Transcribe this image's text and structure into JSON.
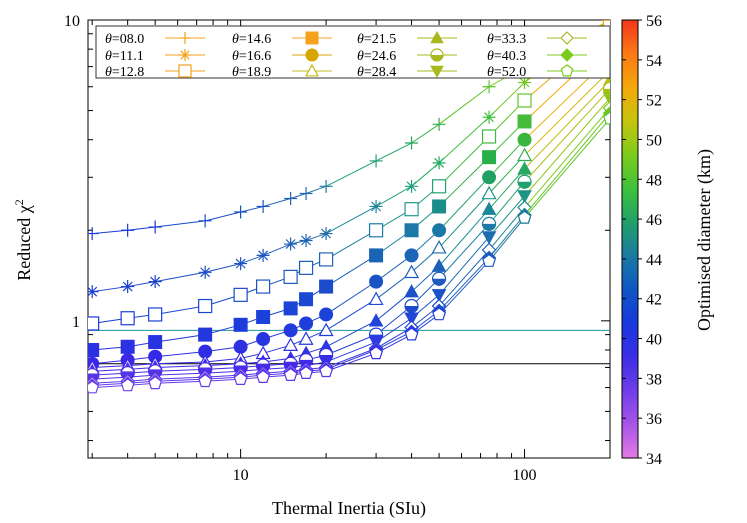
{
  "chart_data": {
    "type": "line",
    "xlabel": "Thermal Inertia (SIu)",
    "ylabel": "Reduced χ2",
    "colorbar_label": "Optimised diameter (km)",
    "x_scale": "log",
    "y_scale": "log",
    "xlim": [
      2.9,
      200
    ],
    "ylim": [
      0.35,
      10
    ],
    "x_ticks": [
      10,
      100
    ],
    "x_tick_labels": [
      "10",
      "100"
    ],
    "y_ticks": [
      1,
      10
    ],
    "y_tick_labels": [
      "1",
      "10"
    ],
    "colorbar_range": [
      34,
      56
    ],
    "colorbar_ticks": [
      "34",
      "36",
      "38",
      "40",
      "42",
      "44",
      "46",
      "48",
      "50",
      "52",
      "54",
      "56"
    ],
    "colorbar_colors": [
      "#e37ae3",
      "#a855e8",
      "#6f3ee8",
      "#3c2ee6",
      "#1838dc",
      "#0e56c4",
      "#1a7ba0",
      "#20a06a",
      "#3ec23a",
      "#7ccb1c",
      "#c6c40e",
      "#f4a70c",
      "#fb7a14",
      "#f4361c"
    ],
    "legend_location": "top",
    "legend": [
      {
        "label": "θ=08.0",
        "marker": "plus",
        "color": "#f4a21c"
      },
      {
        "label": "θ=11.1",
        "marker": "star",
        "color": "#f4a21c"
      },
      {
        "label": "θ=12.8",
        "marker": "square-open",
        "color": "#f4a21c"
      },
      {
        "label": "θ=14.6",
        "marker": "square",
        "color": "#f4a21c"
      },
      {
        "label": "θ=16.6",
        "marker": "circle",
        "color": "#d6a600"
      },
      {
        "label": "θ=18.9",
        "marker": "triangle-open",
        "color": "#c8b81e"
      },
      {
        "label": "θ=21.5",
        "marker": "triangle",
        "color": "#a8b81e"
      },
      {
        "label": "θ=24.6",
        "marker": "circle-half",
        "color": "#a8b81e"
      },
      {
        "label": "θ=28.4",
        "marker": "triangle-down",
        "color": "#a8b81e"
      },
      {
        "label": "θ=33.3",
        "marker": "diamond-open",
        "color": "#a8b81e"
      },
      {
        "label": "θ=40.3",
        "marker": "diamond",
        "color": "#7ccb1c"
      },
      {
        "label": "θ=52.0",
        "marker": "pentagon-open",
        "color": "#7ccb1c"
      }
    ],
    "x": [
      3,
      4,
      5,
      7.5,
      10,
      12,
      15,
      17,
      20,
      30,
      40,
      50,
      75,
      100,
      200
    ],
    "series": [
      {
        "name": "θ=08.0",
        "marker": "plus",
        "y": [
          1.95,
          2.0,
          2.05,
          2.15,
          2.3,
          2.4,
          2.55,
          2.65,
          2.8,
          3.4,
          3.9,
          4.5,
          6.0,
          7.0,
          10.0
        ],
        "colors": [
          "#1838dc",
          "#1838dc",
          "#1838dc",
          "#1848d0",
          "#1850c8",
          "#1856c4",
          "#1e62b8",
          "#1e6ab0",
          "#20789f",
          "#209a78",
          "#22a660",
          "#30b048",
          "#5cc428",
          "#7ccb1c",
          "#c6c40e"
        ]
      },
      {
        "name": "θ=11.1",
        "marker": "star",
        "y": [
          1.25,
          1.3,
          1.35,
          1.45,
          1.55,
          1.65,
          1.8,
          1.85,
          1.95,
          2.4,
          2.8,
          3.35,
          4.75,
          6.2,
          10.0
        ],
        "colors": [
          "#1a3ad8",
          "#1a40d4",
          "#1a44d0",
          "#1a4ccc",
          "#1c54c4",
          "#1c58c0",
          "#1e60b8",
          "#1e64b4",
          "#1e6cac",
          "#1e889a",
          "#20a080",
          "#22aa60",
          "#40c03a",
          "#6ec820",
          "#e0b80c"
        ]
      },
      {
        "name": "θ=12.8",
        "marker": "square-open",
        "y": [
          0.98,
          1.02,
          1.05,
          1.12,
          1.22,
          1.3,
          1.4,
          1.5,
          1.6,
          2.0,
          2.35,
          2.8,
          4.1,
          5.4,
          9.5
        ],
        "colors": [
          "#1838dc",
          "#1a3cd8",
          "#1a40d4",
          "#1a48d0",
          "#1a4ccc",
          "#1c52c4",
          "#1c58c0",
          "#1c5cbc",
          "#1e62b8",
          "#1e7ca4",
          "#209890",
          "#20a270",
          "#3eba40",
          "#60c42a",
          "#f0a80c"
        ]
      },
      {
        "name": "θ=14.6",
        "marker": "square",
        "y": [
          0.8,
          0.82,
          0.85,
          0.9,
          0.97,
          1.03,
          1.1,
          1.18,
          1.3,
          1.65,
          2.0,
          2.4,
          3.5,
          4.6,
          8.5
        ],
        "colors": [
          "#2a30e4",
          "#2a32e2",
          "#2834e0",
          "#2238de",
          "#1e3cdc",
          "#1c40da",
          "#1c44d6",
          "#1c48d2",
          "#1a4ccc",
          "#1a64b6",
          "#1c78a6",
          "#1a8c8a",
          "#28b048",
          "#44bc3a",
          "#f4a70c"
        ]
      },
      {
        "name": "θ=16.6",
        "marker": "circle",
        "y": [
          0.72,
          0.74,
          0.76,
          0.79,
          0.82,
          0.87,
          0.93,
          0.98,
          1.05,
          1.35,
          1.65,
          2.0,
          3.0,
          4.0,
          7.5
        ],
        "colors": [
          "#3a28e8",
          "#3a2ae6",
          "#342ae6",
          "#302ee4",
          "#2c32e2",
          "#2836e0",
          "#223ade",
          "#1e3edc",
          "#1c42d8",
          "#1a54c4",
          "#1c64b6",
          "#1a78a6",
          "#22a064",
          "#3ab640",
          "#e8b00c"
        ]
      },
      {
        "name": "θ=18.9",
        "marker": "triangle-open",
        "y": [
          0.7,
          0.71,
          0.72,
          0.73,
          0.75,
          0.78,
          0.83,
          0.87,
          0.93,
          1.18,
          1.45,
          1.75,
          2.65,
          3.55,
          6.8
        ],
        "colors": [
          "#4028e8",
          "#4028e8",
          "#3c28e8",
          "#382ae6",
          "#342ce6",
          "#3030e4",
          "#2a34e2",
          "#2638e0",
          "#223cde",
          "#1c4cd0",
          "#1a5cc0",
          "#1c6cb0",
          "#1e9484",
          "#2cae50",
          "#d4b80e"
        ]
      },
      {
        "name": "θ=21.5",
        "marker": "triangle",
        "y": [
          0.68,
          0.69,
          0.7,
          0.71,
          0.72,
          0.73,
          0.75,
          0.78,
          0.82,
          1.0,
          1.25,
          1.52,
          2.35,
          3.2,
          6.3
        ],
        "colors": [
          "#4a2ce8",
          "#4a2ce8",
          "#462ae8",
          "#4228e8",
          "#3e28e8",
          "#3a28e8",
          "#3630e4",
          "#3234e2",
          "#2c38e0",
          "#2044d8",
          "#1c52c8",
          "#1c60b8",
          "#1c8896",
          "#28a860",
          "#c0bc10"
        ]
      },
      {
        "name": "θ=24.6",
        "marker": "circle-half",
        "y": [
          0.66,
          0.67,
          0.68,
          0.69,
          0.7,
          0.71,
          0.72,
          0.74,
          0.77,
          0.9,
          1.12,
          1.38,
          2.1,
          2.9,
          5.9
        ],
        "colors": [
          "#5030e8",
          "#4e30e8",
          "#4c2ee8",
          "#482ce8",
          "#442ae8",
          "#4028e8",
          "#3c2ae6",
          "#382ee4",
          "#3232e2",
          "#2440dc",
          "#1c4ccc",
          "#1c5ac0",
          "#1c7aa4",
          "#22a070",
          "#a8c012"
        ]
      },
      {
        "name": "θ=28.4",
        "marker": "triangle-down",
        "y": [
          0.64,
          0.65,
          0.66,
          0.67,
          0.68,
          0.69,
          0.7,
          0.71,
          0.73,
          0.85,
          1.02,
          1.22,
          1.9,
          2.6,
          5.5
        ],
        "colors": [
          "#5834e8",
          "#5634e8",
          "#5432e8",
          "#5030e8",
          "#4c2ee8",
          "#482ce8",
          "#442ae8",
          "#402ae6",
          "#3a2ee4",
          "#2c3ae0",
          "#2046d6",
          "#1c52c8",
          "#1c6cb0",
          "#1e9484",
          "#90c418"
        ]
      },
      {
        "name": "θ=33.3",
        "marker": "diamond-open",
        "y": [
          0.62,
          0.63,
          0.64,
          0.65,
          0.66,
          0.67,
          0.68,
          0.69,
          0.7,
          0.81,
          0.95,
          1.12,
          1.72,
          2.38,
          5.1
        ],
        "colors": [
          "#6038e8",
          "#5e38e8",
          "#5c36e8",
          "#5834e8",
          "#5432e8",
          "#5030e8",
          "#4c2ee8",
          "#482ce8",
          "#442ae8",
          "#3034e2",
          "#2640dc",
          "#1e4cd0",
          "#1c62b8",
          "#1c8890",
          "#7ccb1c"
        ]
      },
      {
        "name": "θ=40.3",
        "marker": "diamond",
        "y": [
          0.61,
          0.62,
          0.63,
          0.64,
          0.65,
          0.66,
          0.67,
          0.68,
          0.69,
          0.8,
          0.92,
          1.08,
          1.62,
          2.25,
          4.9
        ],
        "colors": [
          "#683ce8",
          "#663ce8",
          "#643ae8",
          "#6038e8",
          "#5c36e8",
          "#5834e8",
          "#5432e8",
          "#5030e8",
          "#4c2ee8",
          "#3432e2",
          "#283cde",
          "#2048d4",
          "#1c5cc0",
          "#1c7ca2",
          "#6ac820"
        ]
      },
      {
        "name": "θ=52.0",
        "marker": "pentagon-open",
        "y": [
          0.6,
          0.61,
          0.62,
          0.63,
          0.64,
          0.65,
          0.66,
          0.67,
          0.68,
          0.78,
          0.9,
          1.05,
          1.58,
          2.2,
          4.7
        ],
        "colors": [
          "#7040e8",
          "#6e40e8",
          "#6c3ee8",
          "#683ce8",
          "#643ae8",
          "#6038e8",
          "#5c36e8",
          "#5834e8",
          "#5432e8",
          "#3a30e4",
          "#2c3ae0",
          "#2444d8",
          "#1c58c4",
          "#1c7498",
          "#5cc428"
        ]
      }
    ],
    "reference_lines": [
      {
        "y": 0.93,
        "color": "#1a9a9a"
      },
      {
        "y": 0.72,
        "color": "#000000"
      }
    ]
  }
}
